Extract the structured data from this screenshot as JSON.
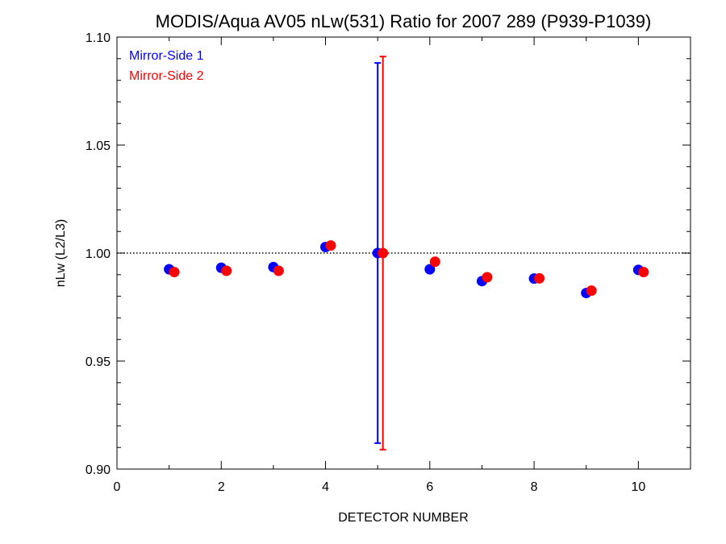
{
  "chart_data": {
    "type": "scatter",
    "title": "MODIS/Aqua AV05 nLw(531) Ratio for 2007 289 (P939-P1039)",
    "xlabel": "DETECTOR NUMBER",
    "ylabel": "nLw (L2/L3)",
    "xlim": [
      0,
      11
    ],
    "ylim": [
      0.9,
      1.1
    ],
    "x_ticks": [
      0,
      2,
      4,
      6,
      8,
      10
    ],
    "x_tick_labels": [
      "0",
      "2",
      "4",
      "6",
      "8",
      "10"
    ],
    "y_ticks": [
      0.9,
      0.95,
      1.0,
      1.05,
      1.1
    ],
    "y_tick_labels": [
      "0.90",
      "0.95",
      "1.00",
      "1.05",
      "1.10"
    ],
    "reference_line": 1.0,
    "legend_position": "top-left",
    "series": [
      {
        "name": "Mirror-Side 1",
        "color": "#0000ff",
        "x": [
          1,
          2,
          3,
          4,
          5,
          6,
          7,
          8,
          9,
          10
        ],
        "y": [
          0.9925,
          0.9932,
          0.9935,
          1.0028,
          1.0,
          0.9925,
          0.987,
          0.9882,
          0.9815,
          0.9922
        ],
        "error_bars": [
          {
            "x": 5,
            "low": 0.912,
            "high": 1.088
          }
        ]
      },
      {
        "name": "Mirror-Side 2",
        "color": "#ff0000",
        "x": [
          1.1,
          2.1,
          3.1,
          4.1,
          5.1,
          6.1,
          7.1,
          8.1,
          9.1,
          10.1
        ],
        "y": [
          0.9912,
          0.9918,
          0.9918,
          1.0035,
          1.0,
          0.996,
          0.9888,
          0.9883,
          0.9826,
          0.9912
        ],
        "error_bars": [
          {
            "x": 5.1,
            "low": 0.909,
            "high": 1.091
          }
        ]
      }
    ]
  }
}
